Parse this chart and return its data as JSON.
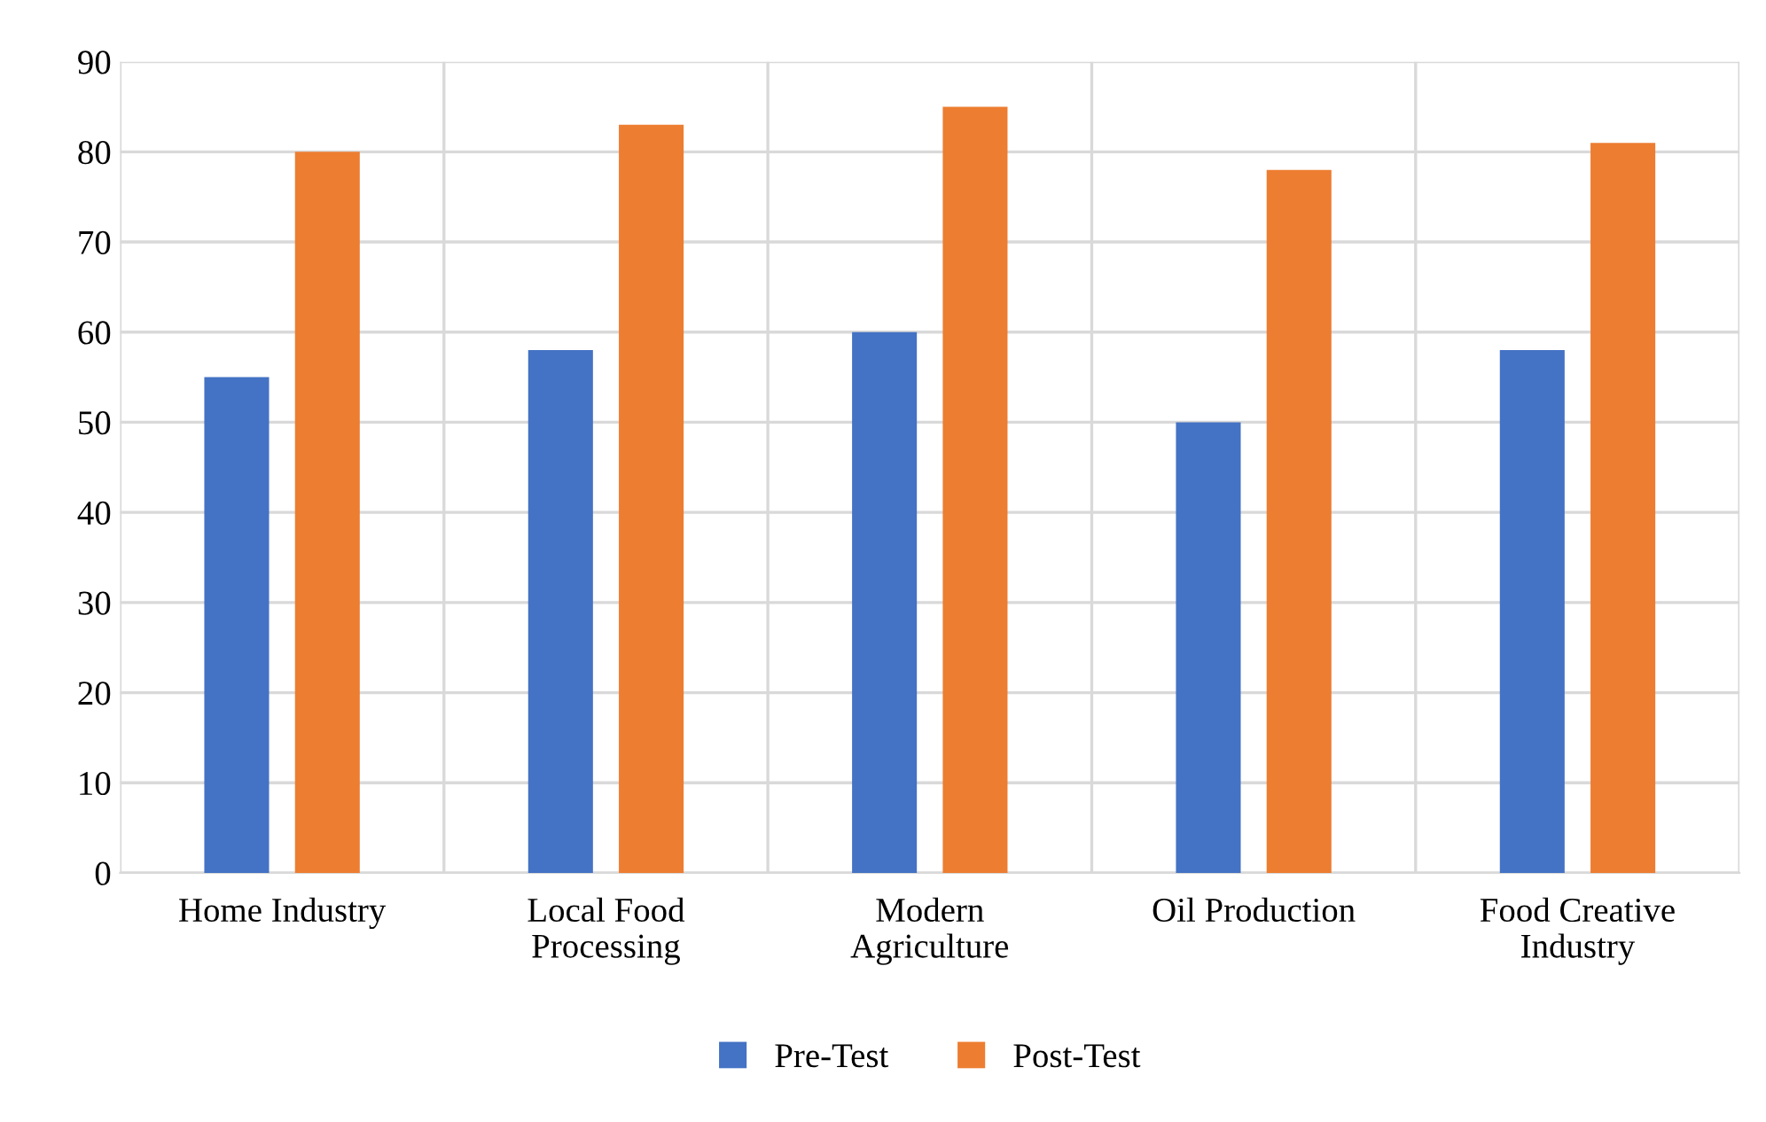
{
  "chart_data": {
    "type": "bar",
    "categories": [
      "Home Industry",
      "Local Food\nProcessing",
      "Modern\nAgriculture",
      "Oil Production",
      "Food Creative\nIndustry"
    ],
    "series": [
      {
        "name": "Pre-Test",
        "color": "#4472c4",
        "values": [
          55,
          58,
          60,
          50,
          58
        ]
      },
      {
        "name": "Post-Test",
        "color": "#ed7d31",
        "values": [
          80,
          83,
          85,
          78,
          81
        ]
      }
    ],
    "ylim": [
      0,
      90
    ],
    "yticks": [
      0,
      10,
      20,
      30,
      40,
      50,
      60,
      70,
      80,
      90
    ],
    "grid": true,
    "legend": "bottom"
  }
}
